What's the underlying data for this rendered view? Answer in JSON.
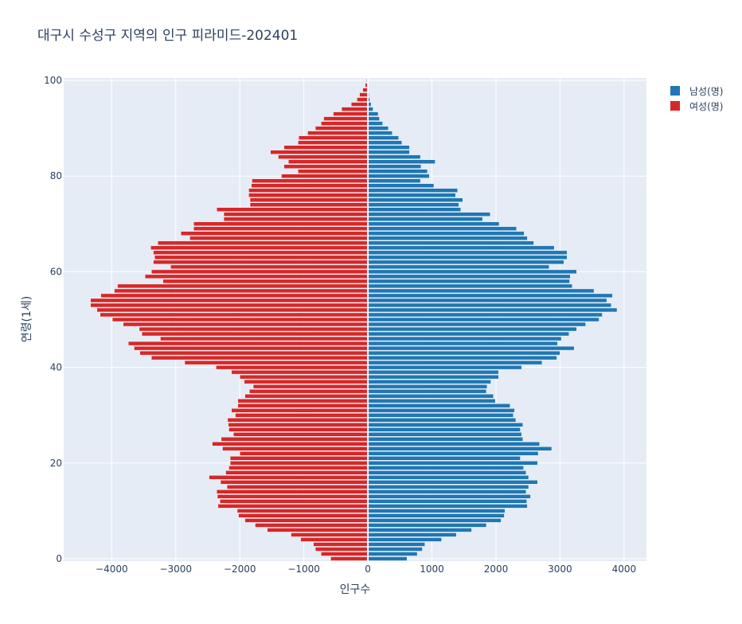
{
  "chart_data": {
    "type": "bar",
    "orientation": "horizontal",
    "title": "대구시 수성구 지역의 인구 피라미드-202401",
    "xlabel": "인구수",
    "ylabel": "연령(1세)",
    "xlim": [
      -4750,
      4350
    ],
    "ylim": [
      0,
      100
    ],
    "xticks": [
      -4000,
      -3000,
      -2000,
      -1000,
      0,
      1000,
      2000,
      3000,
      4000
    ],
    "xtick_labels": [
      "−4000",
      "−3000",
      "−2000",
      "−1000",
      "0",
      "1000",
      "2000",
      "3000",
      "4000"
    ],
    "yticks": [
      0,
      20,
      40,
      60,
      80,
      100
    ],
    "ytick_labels": [
      "0",
      "20",
      "40",
      "60",
      "80",
      "100"
    ],
    "grid": true,
    "legend_position": "top-right",
    "ages": [
      0,
      1,
      2,
      3,
      4,
      5,
      6,
      7,
      8,
      9,
      10,
      11,
      12,
      13,
      14,
      15,
      16,
      17,
      18,
      19,
      20,
      21,
      22,
      23,
      24,
      25,
      26,
      27,
      28,
      29,
      30,
      31,
      32,
      33,
      34,
      35,
      36,
      37,
      38,
      39,
      40,
      41,
      42,
      43,
      44,
      45,
      46,
      47,
      48,
      49,
      50,
      51,
      52,
      53,
      54,
      55,
      56,
      57,
      58,
      59,
      60,
      61,
      62,
      63,
      64,
      65,
      66,
      67,
      68,
      69,
      70,
      71,
      72,
      73,
      74,
      75,
      76,
      77,
      78,
      79,
      80,
      81,
      82,
      83,
      84,
      85,
      86,
      87,
      88,
      89,
      90,
      91,
      92,
      93,
      94,
      95,
      96,
      97,
      98,
      99,
      100
    ],
    "series": [
      {
        "name": "남성(명)",
        "color": "#1f77b4",
        "values": [
          610,
          770,
          850,
          890,
          1150,
          1380,
          1620,
          1850,
          2080,
          2130,
          2140,
          2490,
          2480,
          2540,
          2470,
          2510,
          2650,
          2510,
          2470,
          2430,
          2650,
          2380,
          2660,
          2870,
          2680,
          2420,
          2400,
          2380,
          2420,
          2310,
          2270,
          2290,
          2220,
          1990,
          1960,
          1850,
          1860,
          1920,
          2040,
          2040,
          2400,
          2720,
          2950,
          3000,
          3220,
          2960,
          3020,
          3140,
          3260,
          3400,
          3610,
          3660,
          3890,
          3800,
          3730,
          3820,
          3530,
          3190,
          3150,
          3160,
          3260,
          2830,
          3060,
          3110,
          3110,
          2910,
          2590,
          2490,
          2440,
          2320,
          2050,
          1790,
          1910,
          1450,
          1420,
          1480,
          1370,
          1400,
          1030,
          820,
          960,
          930,
          830,
          1050,
          820,
          650,
          650,
          530,
          480,
          380,
          320,
          230,
          180,
          160,
          80,
          50,
          30,
          20,
          10,
          10,
          5
        ]
      },
      {
        "name": "여성(명)",
        "color": "#d62728",
        "values": [
          -580,
          -730,
          -820,
          -850,
          -1050,
          -1200,
          -1570,
          -1760,
          -1920,
          -2020,
          -2040,
          -2340,
          -2310,
          -2350,
          -2360,
          -2200,
          -2300,
          -2480,
          -2220,
          -2170,
          -2150,
          -2150,
          -2000,
          -2270,
          -2430,
          -2290,
          -2100,
          -2170,
          -2180,
          -2190,
          -2070,
          -2130,
          -2030,
          -2030,
          -1920,
          -1850,
          -1790,
          -1930,
          -2000,
          -2130,
          -2370,
          -2860,
          -3380,
          -3560,
          -3650,
          -3740,
          -3240,
          -3530,
          -3570,
          -3820,
          -3990,
          -4180,
          -4230,
          -4330,
          -4330,
          -4170,
          -3960,
          -3910,
          -3200,
          -3480,
          -3380,
          -3080,
          -3350,
          -3330,
          -3350,
          -3390,
          -3280,
          -2780,
          -2920,
          -2720,
          -2720,
          -2250,
          -2250,
          -2360,
          -1840,
          -1840,
          -1860,
          -1860,
          -1820,
          -1810,
          -1350,
          -1090,
          -1310,
          -1240,
          -1400,
          -1520,
          -1310,
          -1090,
          -1080,
          -940,
          -820,
          -730,
          -690,
          -540,
          -410,
          -260,
          -170,
          -130,
          -80,
          -40,
          -20
        ]
      }
    ]
  }
}
